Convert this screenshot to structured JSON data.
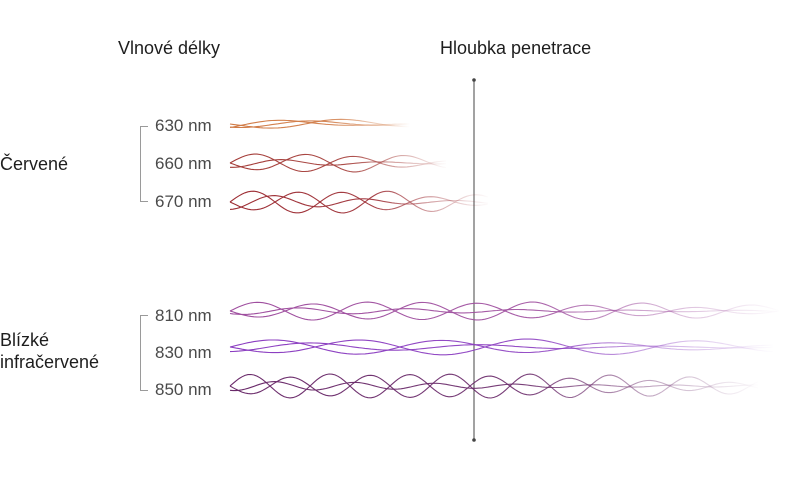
{
  "headers": {
    "wavelengths": "Vlnové délky",
    "penetration": "Hloubka penetrace"
  },
  "groups": {
    "red": "Červené",
    "nir_line1": "Blízké",
    "nir_line2": "infračervené"
  },
  "wavelengths": {
    "w630": "630 nm",
    "w660": "660 nm",
    "w670": "670 nm",
    "w810": "810 nm",
    "w830": "830 nm",
    "w850": "850 nm"
  },
  "colors": {
    "w630": "#d07a45",
    "w660": "#a33a36",
    "w670": "#9c2b32",
    "w810": "#9e4d9e",
    "w830": "#8a3cc0",
    "w850": "#6a2a6a",
    "axis": "#444444",
    "bracket": "#9a9a9a"
  }
}
